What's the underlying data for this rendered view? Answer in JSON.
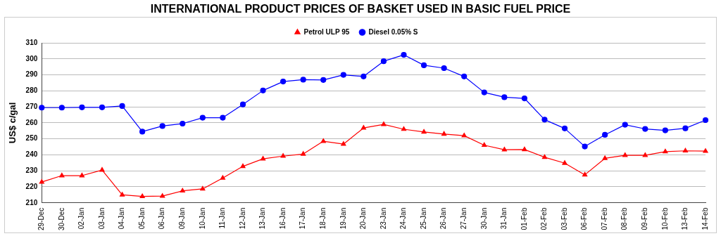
{
  "chart_data": {
    "type": "line",
    "title": "INTERNATIONAL PRODUCT PRICES OF BASKET USED IN BASIC FUEL PRICE",
    "ylabel": "US$ c/gal",
    "categories": [
      "29-Dec",
      "30-Dec",
      "02-Jan",
      "03-Jan",
      "04-Jan",
      "05-Jan",
      "06-Jan",
      "09-Jan",
      "10-Jan",
      "11-Jan",
      "12-Jan",
      "13-Jan",
      "16-Jan",
      "17-Jan",
      "18-Jan",
      "19-Jan",
      "20-Jan",
      "23-Jan",
      "24-Jan",
      "25-Jan",
      "26-Jan",
      "27-Jan",
      "30-Jan",
      "31-Jan",
      "01-Feb",
      "02-Feb",
      "03-Feb",
      "06-Feb",
      "07-Feb",
      "08-Feb",
      "09-Feb",
      "10-Feb",
      "13-Feb",
      "14-Feb"
    ],
    "series": [
      {
        "name": "Petrol ULP 95",
        "color": "#ff0000",
        "marker": "triangle",
        "values": [
          223,
          227,
          227,
          230.5,
          215,
          214,
          214.2,
          217.5,
          218.7,
          225.5,
          232.8,
          237.5,
          239.2,
          240.5,
          248.5,
          246.7,
          256.8,
          259,
          256,
          254.3,
          253,
          252,
          246,
          243.2,
          243.3,
          238.5,
          234.8,
          227.5,
          237.8,
          239.7,
          239.7,
          242,
          242.5,
          242.3
        ]
      },
      {
        "name": "Diesel 0.05% S",
        "color": "#0000ff",
        "marker": "circle",
        "values": [
          269.5,
          269.5,
          269.7,
          269.7,
          270.5,
          254.5,
          258,
          259.5,
          263.2,
          263.2,
          271.5,
          280.2,
          285.8,
          287,
          286.8,
          290,
          289,
          298.5,
          302.5,
          296,
          294.2,
          289,
          279,
          276,
          275.3,
          262,
          256.5,
          245.2,
          252.5,
          258.8,
          256.2,
          255.3,
          256.6,
          261.7
        ]
      }
    ],
    "ylim": [
      210,
      310
    ],
    "yticks": [
      210,
      220,
      230,
      240,
      250,
      260,
      270,
      280,
      290,
      300,
      310
    ],
    "grid": "y",
    "legend": "top",
    "line_style": "solid"
  }
}
